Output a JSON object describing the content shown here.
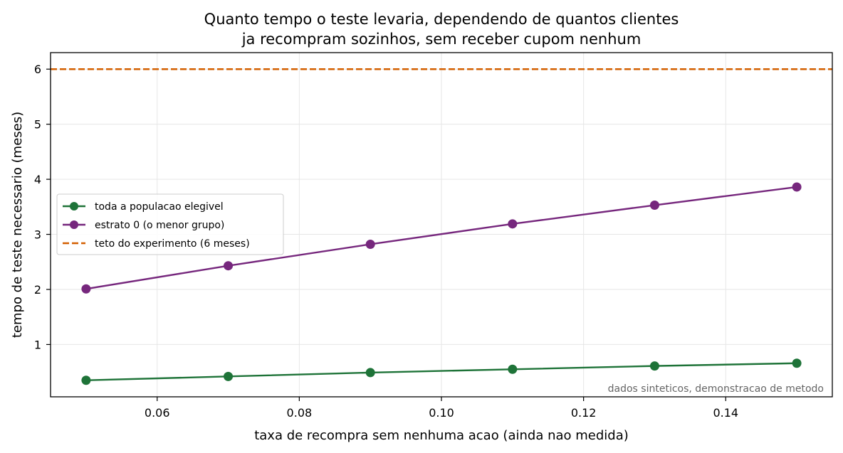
{
  "chart_data": {
    "type": "line",
    "title_lines": [
      "Quanto tempo o teste levaria, dependendo de quantos clientes",
      "ja recompram sozinhos, sem receber cupom nenhum"
    ],
    "xlabel": "taxa de recompra sem nenhuma acao (ainda nao medida)",
    "ylabel": "tempo de teste necessario (meses)",
    "xlim": [
      0.045,
      0.155
    ],
    "ylim": [
      0.05,
      6.3
    ],
    "x_ticks": [
      0.06,
      0.08,
      0.1,
      0.12,
      0.14
    ],
    "x_tick_labels": [
      "0.06",
      "0.08",
      "0.10",
      "0.12",
      "0.14"
    ],
    "y_ticks": [
      1,
      2,
      3,
      4,
      5,
      6
    ],
    "y_tick_labels": [
      "1",
      "2",
      "3",
      "4",
      "5",
      "6"
    ],
    "grid": true,
    "legend_position": "center-left",
    "x": [
      0.05,
      0.07,
      0.09,
      0.11,
      0.13,
      0.15
    ],
    "series": [
      {
        "name": "toda a populacao elegivel",
        "color": "#1e7338",
        "marker": "circle",
        "values": [
          0.35,
          0.42,
          0.49,
          0.55,
          0.61,
          0.66
        ]
      },
      {
        "name": "estrato 0 (o menor grupo)",
        "color": "#76277d",
        "marker": "circle",
        "values": [
          2.01,
          2.43,
          2.82,
          3.19,
          3.53,
          3.86
        ]
      }
    ],
    "reference_lines": [
      {
        "name": "teto do experimento (6 meses)",
        "y": 6,
        "color": "#d35f00",
        "style": "dashed"
      }
    ],
    "annotation": "dados sinteticos, demonstracao de metodo"
  }
}
